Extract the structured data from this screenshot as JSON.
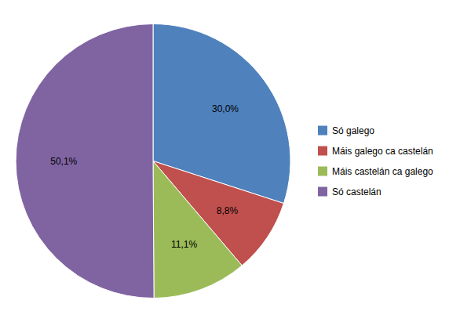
{
  "chart_data": {
    "type": "pie",
    "categories": [
      "Só galego",
      "Máis galego ca castelán",
      "Máis castelán ca galego",
      "Só castelán"
    ],
    "values": [
      30.0,
      8.8,
      11.1,
      50.1
    ],
    "value_labels": [
      "30,0%",
      "8,8%",
      "11,1%",
      "50,1%"
    ],
    "colors": [
      "#4F81BD",
      "#C0504D",
      "#9BBB59",
      "#8064A2"
    ],
    "data_labels": true,
    "legend": "right"
  }
}
